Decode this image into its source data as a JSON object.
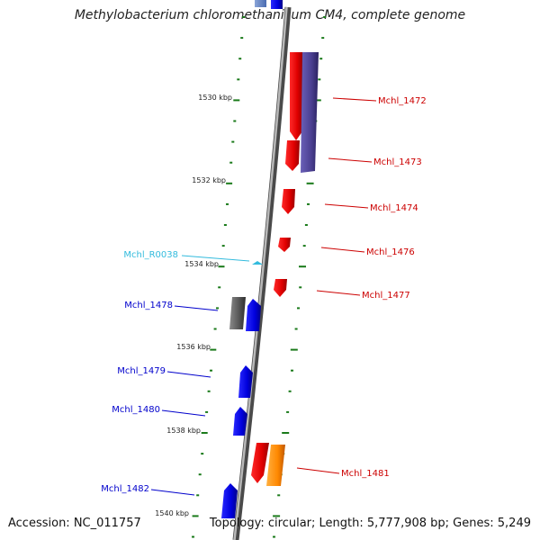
{
  "header": {
    "title": "Methylobacterium chloromethanicum CM4, complete genome"
  },
  "footer": {
    "accession": "Accession: NC_011757",
    "topology": "Topology: circular; Length: 5,777,908 bp; Genes: 5,249"
  },
  "scale_labels": [
    {
      "kbp": 1530,
      "label": "1530 kbp"
    },
    {
      "kbp": 1532,
      "label": "1532 kbp"
    },
    {
      "kbp": 1534,
      "label": "1534 kbp"
    },
    {
      "kbp": 1536,
      "label": "1536 kbp"
    },
    {
      "kbp": 1538,
      "label": "1538 kbp"
    },
    {
      "kbp": 1540,
      "label": "1540 kbp"
    }
  ],
  "genes": [
    {
      "name": "Mchl_1472",
      "strand": "plus",
      "color": "#cc0000"
    },
    {
      "name": "Mchl_1473",
      "strand": "plus",
      "color": "#cc0000"
    },
    {
      "name": "Mchl_1474",
      "strand": "plus",
      "color": "#cc0000"
    },
    {
      "name": "Mchl_1476",
      "strand": "plus",
      "color": "#cc0000"
    },
    {
      "name": "Mchl_1477",
      "strand": "plus",
      "color": "#cc0000"
    },
    {
      "name": "Mchl_R0038",
      "strand": "minus",
      "color": "#33bbdd"
    },
    {
      "name": "Mchl_1478",
      "strand": "minus",
      "color": "#0000aa"
    },
    {
      "name": "Mchl_1479",
      "strand": "minus",
      "color": "#0000aa"
    },
    {
      "name": "Mchl_1480",
      "strand": "minus",
      "color": "#0000aa"
    },
    {
      "name": "Mchl_1481",
      "strand": "plus",
      "color": "#cc0000"
    },
    {
      "name": "Mchl_1482",
      "strand": "minus",
      "color": "#0000aa"
    }
  ],
  "colors": {
    "backbone": "#808080",
    "tick": "#1a7a1a",
    "plus_gene": "#ff0000",
    "minus_gene": "#0000ee",
    "other_feature": "#5a4aa0",
    "grey_feature": "#555555",
    "orange_feature": "#ff8800",
    "rna_feature": "#33bbdd"
  }
}
